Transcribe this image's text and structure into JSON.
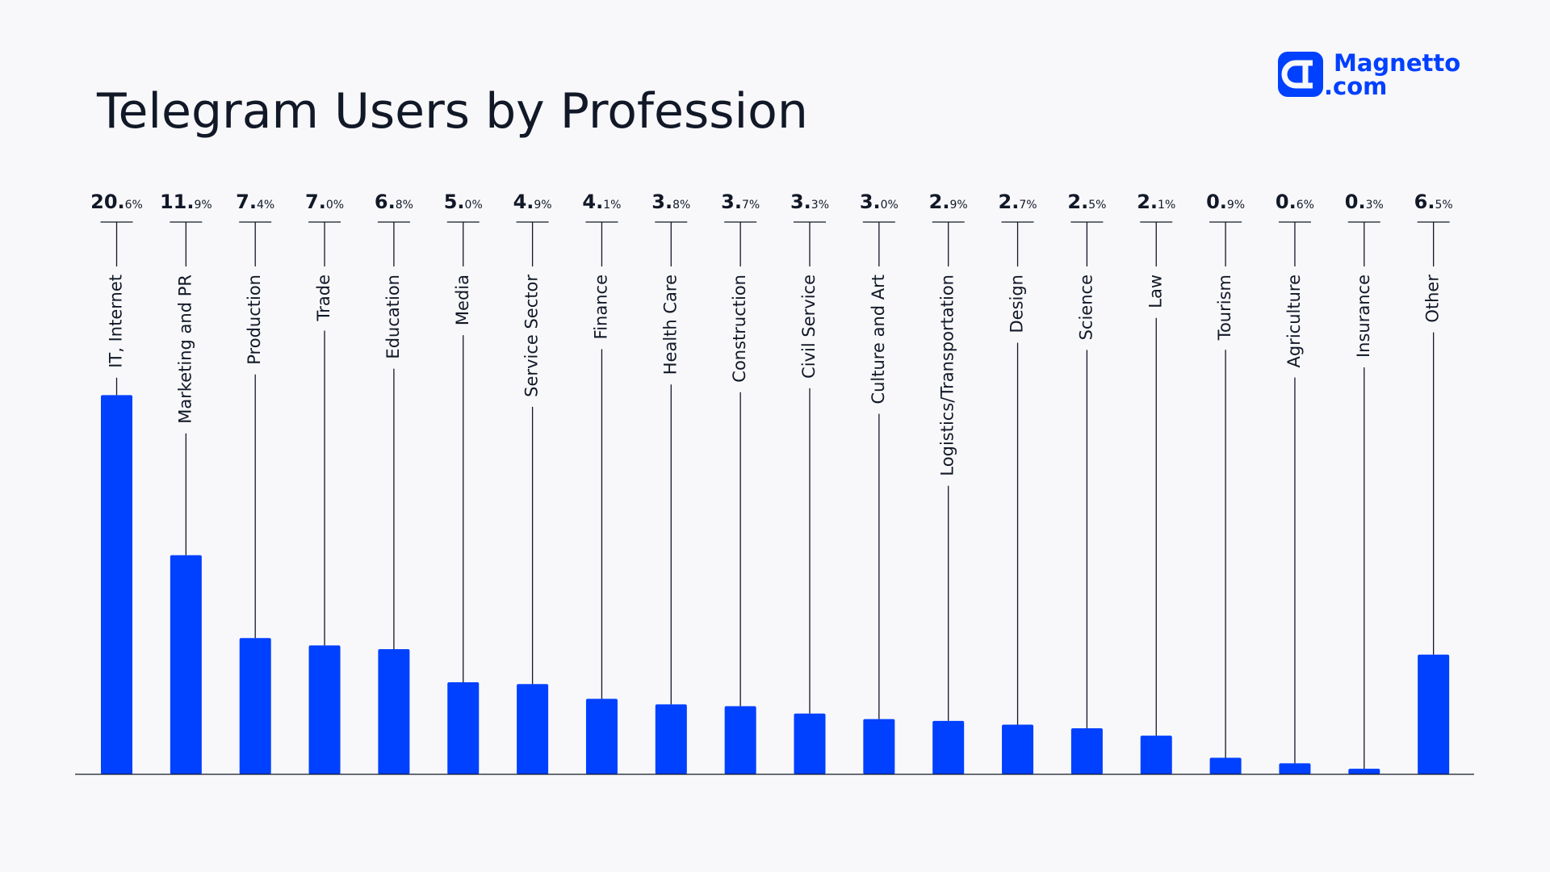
{
  "logo": {
    "line1": "Magnetto",
    "line2": ".com"
  },
  "chart_data": {
    "type": "bar",
    "title": "Telegram Users by Profession",
    "categories": [
      "IT, Internet",
      "Marketing and PR",
      "Production",
      "Trade",
      "Education",
      "Media",
      "Service Sector",
      "Finance",
      "Health Care",
      "Construction",
      "Civil Service",
      "Culture and Art",
      "Logistics/Transportation",
      "Design",
      "Science",
      "Law",
      "Tourism",
      "Agriculture",
      "Insurance",
      "Other"
    ],
    "values": [
      20.6,
      11.9,
      7.4,
      7.0,
      6.8,
      5.0,
      4.9,
      4.1,
      3.8,
      3.7,
      3.3,
      3.0,
      2.9,
      2.7,
      2.5,
      2.1,
      0.9,
      0.6,
      0.3,
      6.5
    ],
    "value_labels": [
      "20.6%",
      "11.9%",
      "7.4%",
      "7.0%",
      "6.8%",
      "5.0%",
      "4.9%",
      "4.1%",
      "3.8%",
      "3.7%",
      "3.3%",
      "3.0%",
      "2.9%",
      "2.7%",
      "2.5%",
      "2.1%",
      "0.9%",
      "0.6%",
      "0.3%",
      "6.5%"
    ],
    "color": "#0040ff"
  }
}
